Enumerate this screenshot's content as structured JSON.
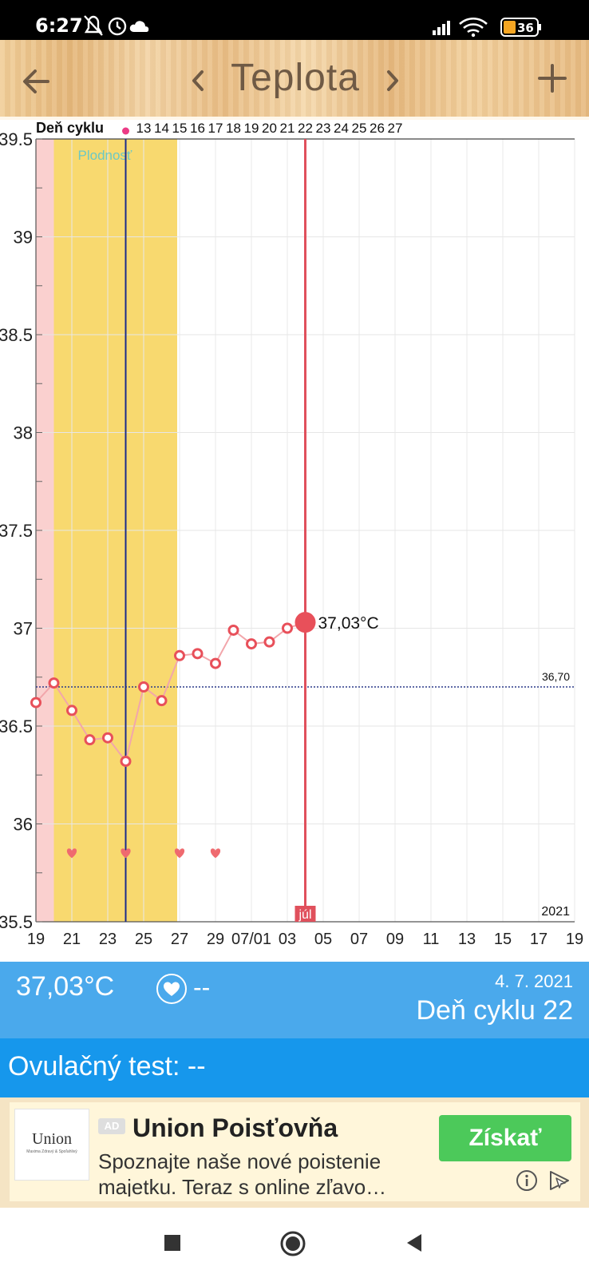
{
  "status_bar": {
    "time": "6:27",
    "battery": "36"
  },
  "header": {
    "title": "Teplota"
  },
  "chart_data": {
    "type": "line",
    "title": "",
    "xlabel": "",
    "ylabel": "",
    "cycle_label": "Deň cyklu",
    "fertility_label": "Plodnosť",
    "ylim": [
      35.5,
      39.5
    ],
    "y_ticks": [
      "39.5",
      "39",
      "38.5",
      "38",
      "37.5",
      "37",
      "36.5",
      "36",
      "35.5"
    ],
    "x_tick_labels": [
      "19",
      "21",
      "23",
      "25",
      "27",
      "29",
      "07/01",
      "03",
      "05",
      "07",
      "09",
      "11",
      "13",
      "15",
      "17",
      "19"
    ],
    "cycle_days": [
      "13",
      "14",
      "15",
      "16",
      "17",
      "18",
      "19",
      "20",
      "21",
      "22",
      "23",
      "24",
      "25",
      "26",
      "27"
    ],
    "series": [
      {
        "values": [
          36.62,
          36.72,
          36.58,
          36.43,
          36.44,
          36.32,
          36.7,
          36.63,
          36.86,
          36.87,
          36.82,
          36.99,
          36.92,
          36.93,
          37.0,
          37.03
        ]
      }
    ],
    "cover_line": "36,70",
    "selected_label": "37,03°C",
    "month_label": "júl",
    "year_label": "2021",
    "period_days": 1,
    "fertile_window_days": [
      1,
      7
    ],
    "ovulation_day_index": 5,
    "selected_day_index": 15,
    "heart_day_indexes": [
      2,
      5,
      8,
      10
    ],
    "colors": {
      "period": "#fad0cf",
      "fertile": "#f8d96f",
      "ovulation_line": "#1a2a8c",
      "selected_line": "#e0505c",
      "series": "#f2a6ab",
      "marker": "#e8505a",
      "heart": "#ef6a6f",
      "fertility_text": "#6cc8c4"
    }
  },
  "info": {
    "temperature": "37,03°C",
    "heart_value": "--",
    "date": "4. 7. 2021",
    "cycle_day": "Deň cyklu 22"
  },
  "ovulation_test": {
    "label": "Ovulačný test: --"
  },
  "ad": {
    "badge": "AD",
    "logo_text": "Union",
    "logo_subtext": "Maxima Zdravý & Spoľahlivý",
    "title": "Union Poisťovňa",
    "description": "Spoznajte naše nové poistenie majetku. Teraz s online zľavo…",
    "cta": "Získať"
  }
}
